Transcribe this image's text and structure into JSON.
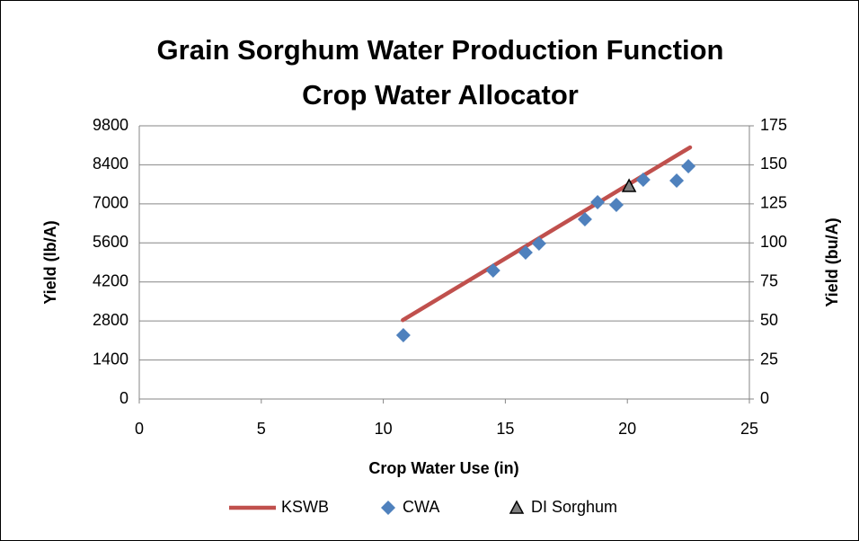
{
  "chart_data": {
    "type": "scatter",
    "title": [
      "Grain Sorghum Water Production Function",
      "Crop Water Allocator"
    ],
    "x_label": "Crop Water Use (in)",
    "y_label": "Yield (lb/A)",
    "y2_label": "Yield (bu/A)",
    "xlim": [
      0,
      25
    ],
    "xticks": [
      0,
      5,
      10,
      15,
      20,
      25
    ],
    "ylim": [
      0,
      9800
    ],
    "yticks": [
      0,
      1400,
      2800,
      4200,
      5600,
      7000,
      8400,
      9800
    ],
    "y2lim": [
      0,
      175
    ],
    "y2ticks": [
      0,
      25,
      50,
      75,
      100,
      125,
      150,
      175
    ],
    "grid": true,
    "legend": "bottom",
    "series": [
      {
        "name": "KSWB",
        "kind": "line",
        "color": "#c0504d",
        "x": [
          10.8,
          22.57
        ],
        "values": [
          2830,
          9026
        ]
      },
      {
        "name": "CWA",
        "kind": "scatter",
        "marker": "diamond",
        "color": "#4f81bd",
        "x": [
          10.82,
          14.5,
          15.83,
          16.38,
          18.26,
          18.78,
          19.55,
          20.65,
          22.02,
          22.5
        ],
        "values": [
          2290,
          4610,
          5255,
          5577,
          6447,
          7060,
          6963,
          7866,
          7834,
          8350
        ]
      },
      {
        "name": "DI Sorghum",
        "kind": "scatter",
        "marker": "triangle",
        "color": "#7f7f7f",
        "x": [
          20.07
        ],
        "values": [
          7640
        ]
      }
    ]
  }
}
